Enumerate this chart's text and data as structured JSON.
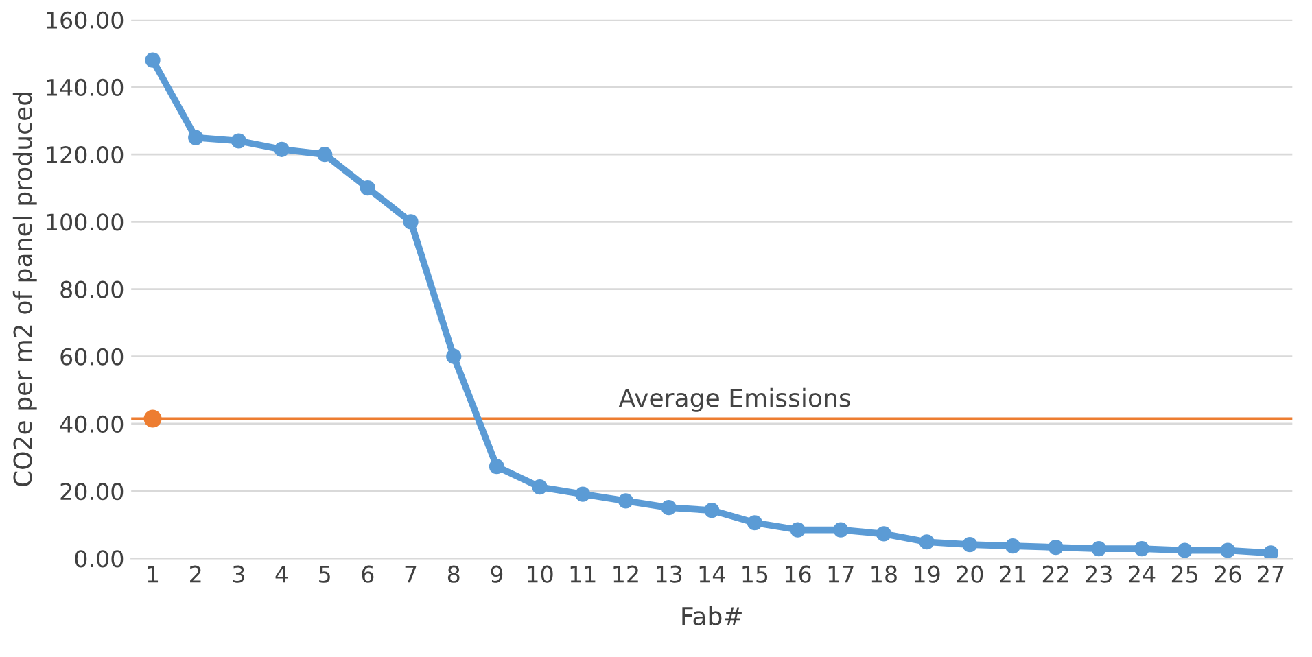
{
  "chart_data": {
    "type": "line",
    "xlabel": "Fab#",
    "ylabel": "CO2e per m2 of panel produced",
    "categories": [
      "1",
      "2",
      "3",
      "4",
      "5",
      "6",
      "7",
      "8",
      "9",
      "10",
      "11",
      "12",
      "13",
      "14",
      "15",
      "16",
      "17",
      "18",
      "19",
      "20",
      "21",
      "22",
      "23",
      "24",
      "25",
      "26",
      "27"
    ],
    "series": [
      {
        "color": "#5b9bd5",
        "values": [
          148,
          125,
          124,
          121.5,
          120,
          110,
          100,
          60,
          27.3,
          21.2,
          19.1,
          17.1,
          15.1,
          14.3,
          10.6,
          8.5,
          8.5,
          7.3,
          4.9,
          4.1,
          3.7,
          3.3,
          2.9,
          2.9,
          2.4,
          2.4,
          1.6
        ]
      },
      {
        "type": "scatter",
        "color": "#ed7d31",
        "x": [
          "1"
        ],
        "values": [
          41.5
        ]
      }
    ],
    "ref_lines": [
      {
        "axis": "y",
        "value": 41.5,
        "label": "Average Emissions",
        "color": "#ed7d31"
      }
    ],
    "ylim": [
      0,
      160
    ],
    "yticks": [
      {
        "value": 0,
        "label": "0.00"
      },
      {
        "value": 20,
        "label": "20.00"
      },
      {
        "value": 40,
        "label": "40.00"
      },
      {
        "value": 60,
        "label": "60.00"
      },
      {
        "value": 80,
        "label": "80.00"
      },
      {
        "value": 100,
        "label": "100.00"
      },
      {
        "value": 120,
        "label": "120.00"
      },
      {
        "value": 140,
        "label": "140.00"
      },
      {
        "value": 160,
        "label": "160.00"
      }
    ],
    "grid": "y",
    "marker": "circle",
    "line_style": "solid"
  }
}
